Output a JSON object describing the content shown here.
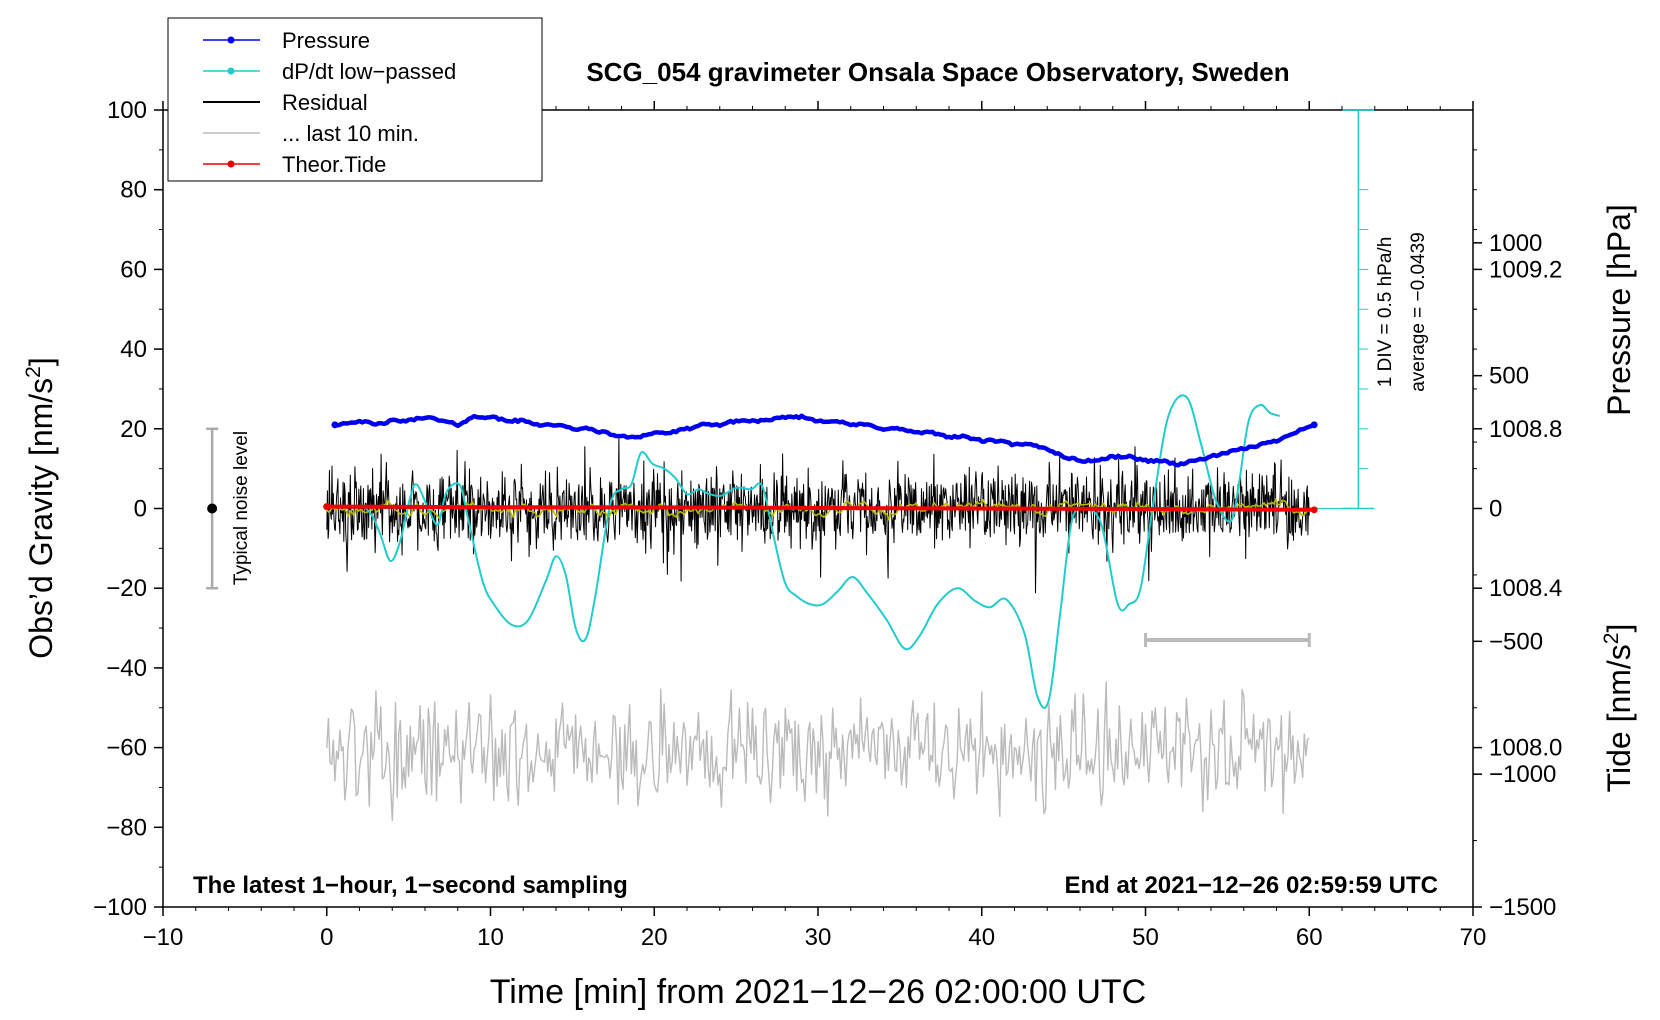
{
  "chart_data": {
    "type": "line",
    "title": "SCG_054 gravimeter Onsala Space Observatory, Sweden",
    "xlabel": "Time [min] from 2021−12−26 02:00:00 UTC",
    "ylabel_left": "Obs’d Gravity [nm/s²]",
    "ylabel_left_main": "Obs’d Gravity [nm/s",
    "ylabel_left_sup": "2",
    "ylabel_left_end": "]",
    "ylabel_right_pressure": "Pressure [hPa]",
    "ylabel_right_tide": "Tide [nm/s²]",
    "ylabel_right_tide_main": "Tide [nm/s",
    "ylabel_right_tide_sup": "2",
    "ylabel_right_tide_end": "]",
    "xlim": [
      -10,
      70
    ],
    "ylim": [
      -100,
      100
    ],
    "pressure_lim": [
      1007.6,
      1009.6
    ],
    "tide_lim": [
      -1500,
      1500
    ],
    "x_ticks": [
      -10,
      0,
      10,
      20,
      30,
      40,
      50,
      60,
      70
    ],
    "x_tick_labels": [
      "−10",
      "0",
      "10",
      "20",
      "30",
      "40",
      "50",
      "60",
      "70"
    ],
    "y_ticks": [
      100,
      80,
      60,
      40,
      20,
      0,
      -20,
      -40,
      -60,
      -80,
      -100
    ],
    "y_tick_labels": [
      "100",
      "80",
      "60",
      "40",
      "20",
      "0",
      "−20",
      "−40",
      "−60",
      "−80",
      "−100"
    ],
    "pressure_ticks": [
      1009.2,
      1008.8,
      1008.4,
      1008.0
    ],
    "pressure_tick_labels": [
      "1009.2",
      "1008.8",
      "1008.4",
      "1008.0"
    ],
    "tide_ticks": [
      1000,
      500,
      0,
      -500,
      -1000,
      -1500
    ],
    "tide_tick_labels": [
      "1000",
      "500",
      "0",
      "−500",
      "−1000",
      "−1500"
    ],
    "legend": [
      {
        "label": "Pressure",
        "color": "#0000ee",
        "marker": true
      },
      {
        "label": "dP/dt low−passed",
        "color": "#22cccc",
        "marker": true
      },
      {
        "label": "Residual",
        "color": "#000000",
        "marker": false
      },
      {
        "label": "... last 10 min.",
        "color": "#bbbbbb",
        "marker": false
      },
      {
        "label": "Theor.Tide",
        "color": "#ee0000",
        "marker": true
      }
    ],
    "legend_position": "top-left",
    "annotation_left": "The latest 1−hour, 1−second sampling",
    "annotation_right": "End at 2021−12−26 02:59:59 UTC",
    "noise_label": "Typical noise level",
    "noise_range": [
      -20,
      20
    ],
    "noise_x": -7,
    "div_label": "1 DIV = 0.5 hPa/h",
    "average_label": "average = −0.0439",
    "dpdt_axis_x": 63,
    "dpdt_zero_hpa": 1008.6,
    "colors": {
      "pressure": "#0000ee",
      "dpdt": "#22cccc",
      "residual": "#000000",
      "smoothed": "#bbbb00",
      "last10": "#bbbbbb",
      "tide": "#ee0000"
    },
    "series": [
      {
        "name": "Pressure",
        "unit": "hPa",
        "x": [
          0.5,
          2,
          3,
          4,
          5,
          6,
          7,
          8,
          9,
          10,
          11,
          12,
          13,
          14,
          15,
          16,
          17,
          18,
          19,
          20,
          21,
          22,
          23,
          24,
          25,
          26,
          27,
          28,
          29,
          30,
          31,
          32,
          33,
          34,
          35,
          36,
          37,
          38,
          39,
          40,
          41,
          42,
          43,
          44,
          45,
          46,
          47,
          48,
          49,
          50,
          51,
          52,
          53,
          54,
          55,
          56,
          57,
          58,
          59,
          60.3
        ],
        "values": [
          1008.81,
          1008.82,
          1008.81,
          1008.82,
          1008.82,
          1008.83,
          1008.82,
          1008.81,
          1008.83,
          1008.83,
          1008.82,
          1008.82,
          1008.81,
          1008.81,
          1008.8,
          1008.8,
          1008.79,
          1008.78,
          1008.78,
          1008.79,
          1008.79,
          1008.8,
          1008.81,
          1008.81,
          1008.82,
          1008.82,
          1008.82,
          1008.83,
          1008.83,
          1008.82,
          1008.82,
          1008.81,
          1008.81,
          1008.8,
          1008.8,
          1008.79,
          1008.79,
          1008.78,
          1008.78,
          1008.77,
          1008.77,
          1008.76,
          1008.76,
          1008.75,
          1008.73,
          1008.72,
          1008.72,
          1008.73,
          1008.73,
          1008.72,
          1008.72,
          1008.71,
          1008.72,
          1008.73,
          1008.74,
          1008.75,
          1008.76,
          1008.77,
          1008.79,
          1008.81
        ]
      },
      {
        "name": "dP/dt low-passed",
        "unit": "hPa/h (1 DIV = 0.5, zero at 1008.6 hPa)",
        "x": [
          2.2,
          2.8,
          3.3,
          3.9,
          4.5,
          5.1,
          5.5,
          6.2,
          6.8,
          7.3,
          8.1,
          8.6,
          9.5,
          10.2,
          11.3,
          12.3,
          13.4,
          14.0,
          14.6,
          15.2,
          15.8,
          16.4,
          17.3,
          18.0,
          18.6,
          19.2,
          19.9,
          20.6,
          21.3,
          22.0,
          22.7,
          23.4,
          24.1,
          25.0,
          25.9,
          26.6,
          27.3,
          28.0,
          28.7,
          29.5,
          30.3,
          31.2,
          32.1,
          33.0,
          34.2,
          35.3,
          36.2,
          37.3,
          38.5,
          39.6,
          40.5,
          41.5,
          42.6,
          43.4,
          44.1,
          44.8,
          45.5,
          46.3,
          47.3,
          48.3,
          49.0,
          49.7,
          50.5,
          51.4,
          52.5,
          53.4,
          54.3,
          55.2,
          55.7,
          56.3,
          57.0,
          57.6,
          58.2
        ],
        "values": [
          0.02,
          -0.05,
          -0.17,
          -0.33,
          -0.2,
          0.07,
          0.15,
          0.0,
          -0.1,
          0.1,
          0.15,
          -0.05,
          -0.45,
          -0.6,
          -0.73,
          -0.7,
          -0.45,
          -0.3,
          -0.42,
          -0.75,
          -0.82,
          -0.55,
          0.02,
          0.12,
          0.15,
          0.35,
          0.28,
          0.25,
          0.19,
          0.09,
          0.12,
          0.09,
          0.08,
          0.13,
          0.12,
          0.14,
          -0.18,
          -0.47,
          -0.55,
          -0.6,
          -0.6,
          -0.52,
          -0.43,
          -0.53,
          -0.7,
          -0.88,
          -0.8,
          -0.6,
          -0.5,
          -0.58,
          -0.62,
          -0.57,
          -0.78,
          -1.18,
          -1.2,
          -0.65,
          -0.08,
          0.0,
          -0.1,
          -0.6,
          -0.6,
          -0.5,
          0.05,
          0.58,
          0.7,
          0.4,
          0.05,
          -0.08,
          0.15,
          0.55,
          0.65,
          0.6,
          0.58
        ]
      },
      {
        "name": "Residual",
        "unit": "nm/s²",
        "x_range": [
          0,
          60
        ],
        "typical_amplitude": [
          -20,
          20
        ],
        "extremes": [
          -23,
          25
        ]
      },
      {
        "name": "Residual (smoothed)",
        "unit": "nm/s²",
        "x_range": [
          0,
          60
        ],
        "typical_amplitude": [
          -2,
          2
        ]
      },
      {
        "name": "... last 10 min.",
        "unit": "nm/s² (relative, offset -60)",
        "x_range": [
          0,
          60
        ],
        "typical_amplitude": [
          -80,
          -40
        ],
        "bracket_x": [
          50,
          60
        ],
        "bracket_y": -33
      },
      {
        "name": "Theor.Tide",
        "unit": "nm/s²",
        "x": [
          0,
          10,
          20,
          30,
          40,
          50,
          60.3
        ],
        "values": [
          7,
          5,
          4,
          2,
          0,
          -2,
          -5
        ]
      }
    ]
  }
}
